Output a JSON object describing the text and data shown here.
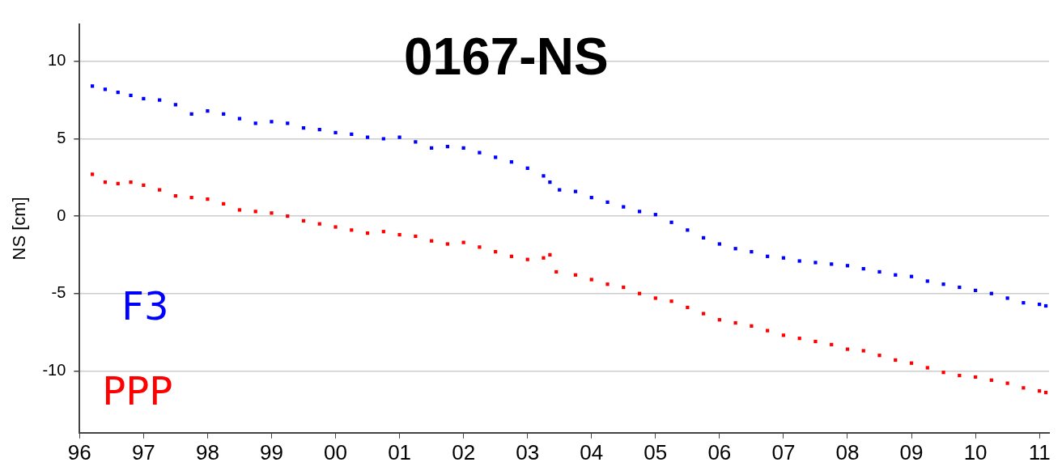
{
  "chart_data": {
    "type": "scatter",
    "title": "0167-NS",
    "ylabel": "NS [cm]",
    "xlim": [
      1996,
      2011.15
    ],
    "ylim": [
      -14,
      12.4
    ],
    "xticks": [
      {
        "value": 1996,
        "label": "96"
      },
      {
        "value": 1997,
        "label": "97"
      },
      {
        "value": 1998,
        "label": "98"
      },
      {
        "value": 1999,
        "label": "99"
      },
      {
        "value": 2000,
        "label": "00"
      },
      {
        "value": 2001,
        "label": "01"
      },
      {
        "value": 2002,
        "label": "02"
      },
      {
        "value": 2003,
        "label": "03"
      },
      {
        "value": 2004,
        "label": "04"
      },
      {
        "value": 2005,
        "label": "05"
      },
      {
        "value": 2006,
        "label": "06"
      },
      {
        "value": 2007,
        "label": "07"
      },
      {
        "value": 2008,
        "label": "08"
      },
      {
        "value": 2009,
        "label": "09"
      },
      {
        "value": 2010,
        "label": "10"
      },
      {
        "value": 2011,
        "label": "11"
      }
    ],
    "yticks": [
      -10,
      -5,
      0,
      5,
      10
    ],
    "grid": "y",
    "legend": false,
    "marker": "square",
    "series": [
      {
        "name": "F3",
        "color": "#0000ff",
        "x": [
          1996.2,
          1996.4,
          1996.6,
          1996.8,
          1997.0,
          1997.25,
          1997.5,
          1997.75,
          1998.0,
          1998.25,
          1998.5,
          1998.75,
          1999.0,
          1999.25,
          1999.5,
          1999.75,
          2000.0,
          2000.25,
          2000.5,
          2000.75,
          2001.0,
          2001.25,
          2001.5,
          2001.75,
          2002.0,
          2002.25,
          2002.5,
          2002.75,
          2003.0,
          2003.25,
          2003.35,
          2003.5,
          2003.75,
          2004.0,
          2004.25,
          2004.5,
          2004.75,
          2005.0,
          2005.25,
          2005.5,
          2005.75,
          2006.0,
          2006.25,
          2006.5,
          2006.75,
          2007.0,
          2007.25,
          2007.5,
          2007.75,
          2008.0,
          2008.25,
          2008.5,
          2008.75,
          2009.0,
          2009.25,
          2009.5,
          2009.75,
          2010.0,
          2010.25,
          2010.5,
          2010.75,
          2011.0,
          2011.1
        ],
        "values": [
          8.4,
          8.2,
          8.0,
          7.8,
          7.6,
          7.5,
          7.2,
          6.6,
          6.8,
          6.6,
          6.3,
          6.0,
          6.1,
          6.0,
          5.7,
          5.6,
          5.4,
          5.3,
          5.1,
          5.0,
          5.1,
          4.8,
          4.4,
          4.5,
          4.4,
          4.1,
          3.8,
          3.5,
          3.1,
          2.6,
          2.2,
          1.7,
          1.6,
          1.2,
          0.9,
          0.6,
          0.3,
          0.1,
          -0.4,
          -0.9,
          -1.4,
          -1.8,
          -2.1,
          -2.3,
          -2.6,
          -2.7,
          -2.9,
          -3.0,
          -3.1,
          -3.2,
          -3.4,
          -3.6,
          -3.8,
          -3.9,
          -4.2,
          -4.4,
          -4.6,
          -4.8,
          -5.0,
          -5.3,
          -5.6,
          -5.7,
          -5.8
        ]
      },
      {
        "name": "PPP",
        "color": "#ff0000",
        "x": [
          1996.2,
          1996.4,
          1996.6,
          1996.8,
          1997.0,
          1997.25,
          1997.5,
          1997.75,
          1998.0,
          1998.25,
          1998.5,
          1998.75,
          1999.0,
          1999.25,
          1999.5,
          1999.75,
          2000.0,
          2000.25,
          2000.5,
          2000.75,
          2001.0,
          2001.25,
          2001.5,
          2001.75,
          2002.0,
          2002.25,
          2002.5,
          2002.75,
          2003.0,
          2003.25,
          2003.35,
          2003.45,
          2003.75,
          2004.0,
          2004.25,
          2004.5,
          2004.75,
          2005.0,
          2005.25,
          2005.5,
          2005.75,
          2006.0,
          2006.25,
          2006.5,
          2006.75,
          2007.0,
          2007.25,
          2007.5,
          2007.75,
          2008.0,
          2008.25,
          2008.5,
          2008.75,
          2009.0,
          2009.25,
          2009.5,
          2009.75,
          2010.0,
          2010.25,
          2010.5,
          2010.75,
          2011.0,
          2011.1
        ],
        "values": [
          2.7,
          2.2,
          2.1,
          2.2,
          2.0,
          1.7,
          1.3,
          1.2,
          1.1,
          0.8,
          0.4,
          0.3,
          0.2,
          0.0,
          -0.3,
          -0.5,
          -0.7,
          -0.9,
          -1.1,
          -1.0,
          -1.2,
          -1.3,
          -1.6,
          -1.8,
          -1.7,
          -2.0,
          -2.3,
          -2.6,
          -2.8,
          -2.7,
          -2.5,
          -3.6,
          -3.8,
          -4.1,
          -4.4,
          -4.6,
          -5.0,
          -5.3,
          -5.5,
          -5.9,
          -6.3,
          -6.7,
          -6.9,
          -7.1,
          -7.4,
          -7.7,
          -7.9,
          -8.1,
          -8.3,
          -8.6,
          -8.7,
          -9.0,
          -9.3,
          -9.5,
          -9.8,
          -10.1,
          -10.3,
          -10.4,
          -10.6,
          -10.8,
          -11.1,
          -11.3,
          -11.4
        ]
      }
    ]
  }
}
